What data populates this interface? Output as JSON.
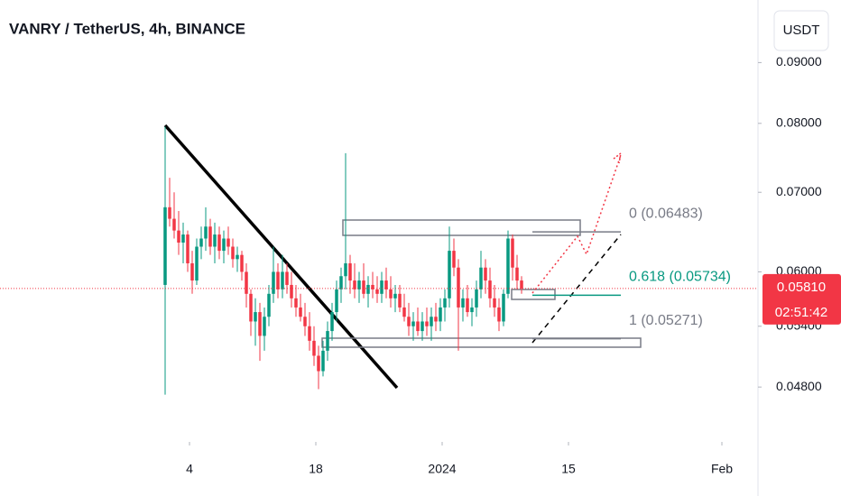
{
  "chart_data": {
    "type": "candlestick",
    "title": "VANRY / TetherUS, 4h, BINANCE",
    "currency": "USDT",
    "log_scale": true,
    "grid": false,
    "up_color": "#089981",
    "down_color": "#f23645",
    "xlim": [
      -36.6,
      131.4
    ],
    "xticks": [
      {
        "value": 5.4,
        "label": "4"
      },
      {
        "value": 33.4,
        "label": "18"
      },
      {
        "value": 61.4,
        "label": "2024"
      },
      {
        "value": 89.4,
        "label": "15"
      },
      {
        "value": 123.4,
        "label": "Feb"
      }
    ],
    "ylim": [
      0.04316,
      0.1016
    ],
    "yticks": [
      {
        "value": 0.048,
        "label": "0.04800"
      },
      {
        "value": 0.054,
        "label": "0.05400"
      },
      {
        "value": 0.06,
        "label": "0.06000"
      },
      {
        "value": 0.07,
        "label": "0.07000"
      },
      {
        "value": 0.08,
        "label": "0.08000"
      },
      {
        "value": 0.09,
        "label": "0.09000"
      }
    ],
    "open": [
      0.0585,
      0.068,
      0.0665,
      0.065,
      0.0635,
      0.0645,
      0.061,
      0.059,
      0.063,
      0.064,
      0.0655,
      0.063,
      0.0645,
      0.0625,
      0.064,
      0.063,
      0.0615,
      0.062,
      0.06,
      0.0575,
      0.0545,
      0.0555,
      0.053,
      0.055,
      0.0575,
      0.06,
      0.058,
      0.06,
      0.0585,
      0.057,
      0.056,
      0.055,
      0.054,
      0.0525,
      0.051,
      0.0495,
      0.0515,
      0.0535,
      0.0555,
      0.058,
      0.0595,
      0.061,
      0.059,
      0.058,
      0.059,
      0.0575,
      0.0585,
      0.058,
      0.0575,
      0.059,
      0.058,
      0.057,
      0.0575,
      0.056,
      0.055,
      0.054,
      0.0545,
      0.0535,
      0.0545,
      0.054,
      0.055,
      0.0545,
      0.056,
      0.057,
      0.0625,
      0.0605,
      0.056,
      0.057,
      0.0555,
      0.056,
      0.058,
      0.0605,
      0.059,
      0.057,
      0.056,
      0.0545,
      0.0575,
      0.064,
      0.0605,
      0.059
    ],
    "high": [
      0.0795,
      0.072,
      0.07,
      0.0675,
      0.066,
      0.065,
      0.0625,
      0.064,
      0.0655,
      0.068,
      0.0665,
      0.066,
      0.0655,
      0.065,
      0.0655,
      0.064,
      0.063,
      0.0625,
      0.061,
      0.058,
      0.057,
      0.0565,
      0.056,
      0.0585,
      0.063,
      0.061,
      0.062,
      0.061,
      0.06,
      0.0585,
      0.0575,
      0.0565,
      0.0555,
      0.054,
      0.052,
      0.0525,
      0.0545,
      0.0565,
      0.059,
      0.0605,
      0.0755,
      0.062,
      0.061,
      0.06,
      0.061,
      0.0595,
      0.06,
      0.0595,
      0.06,
      0.0605,
      0.0595,
      0.0585,
      0.0585,
      0.0575,
      0.0565,
      0.0555,
      0.056,
      0.0555,
      0.056,
      0.056,
      0.0565,
      0.057,
      0.058,
      0.0655,
      0.064,
      0.0615,
      0.058,
      0.0585,
      0.057,
      0.059,
      0.0625,
      0.0615,
      0.0605,
      0.0585,
      0.057,
      0.058,
      0.065,
      0.0645,
      0.062,
      0.0595
    ],
    "low": [
      0.0473,
      0.0655,
      0.064,
      0.062,
      0.061,
      0.06,
      0.0575,
      0.0585,
      0.0615,
      0.0625,
      0.062,
      0.061,
      0.0615,
      0.061,
      0.062,
      0.0605,
      0.06,
      0.059,
      0.056,
      0.053,
      0.052,
      0.0505,
      0.0515,
      0.054,
      0.0565,
      0.057,
      0.057,
      0.0575,
      0.056,
      0.055,
      0.0545,
      0.053,
      0.0515,
      0.05,
      0.0478,
      0.049,
      0.0505,
      0.0525,
      0.0545,
      0.0565,
      0.058,
      0.0575,
      0.057,
      0.0565,
      0.057,
      0.056,
      0.057,
      0.0565,
      0.0565,
      0.057,
      0.056,
      0.0555,
      0.0555,
      0.0545,
      0.053,
      0.0525,
      0.053,
      0.0525,
      0.053,
      0.0525,
      0.0535,
      0.0535,
      0.0545,
      0.056,
      0.0595,
      0.0515,
      0.0545,
      0.055,
      0.054,
      0.055,
      0.057,
      0.0575,
      0.056,
      0.055,
      0.0535,
      0.054,
      0.057,
      0.059,
      0.058,
      0.0575
    ],
    "close": [
      0.068,
      0.0665,
      0.065,
      0.0635,
      0.0645,
      0.061,
      0.059,
      0.063,
      0.064,
      0.0655,
      0.063,
      0.0645,
      0.0625,
      0.064,
      0.063,
      0.0615,
      0.062,
      0.06,
      0.0575,
      0.0545,
      0.0555,
      0.053,
      0.055,
      0.0575,
      0.06,
      0.058,
      0.06,
      0.0585,
      0.057,
      0.056,
      0.055,
      0.054,
      0.0525,
      0.051,
      0.0495,
      0.0515,
      0.0535,
      0.0555,
      0.058,
      0.0595,
      0.061,
      0.059,
      0.058,
      0.059,
      0.0575,
      0.0585,
      0.058,
      0.0575,
      0.059,
      0.058,
      0.057,
      0.0575,
      0.056,
      0.055,
      0.054,
      0.0545,
      0.0535,
      0.0545,
      0.054,
      0.055,
      0.0545,
      0.056,
      0.057,
      0.0625,
      0.0605,
      0.056,
      0.057,
      0.0555,
      0.056,
      0.058,
      0.0605,
      0.059,
      0.057,
      0.056,
      0.0545,
      0.0575,
      0.064,
      0.0605,
      0.059,
      0.0581
    ],
    "fib_levels": [
      {
        "value": 0.06483,
        "label": "0 (0.06483)",
        "color": "#787b86"
      },
      {
        "value": 0.05734,
        "label": "0.618 (0.05734)",
        "color": "#089981"
      },
      {
        "value": 0.05271,
        "label": "1 (0.05271)",
        "color": "#787b86"
      }
    ],
    "last_price": {
      "value": 0.0581,
      "label": "0.05810",
      "color": "#f23645"
    },
    "countdown": "02:51:42"
  }
}
